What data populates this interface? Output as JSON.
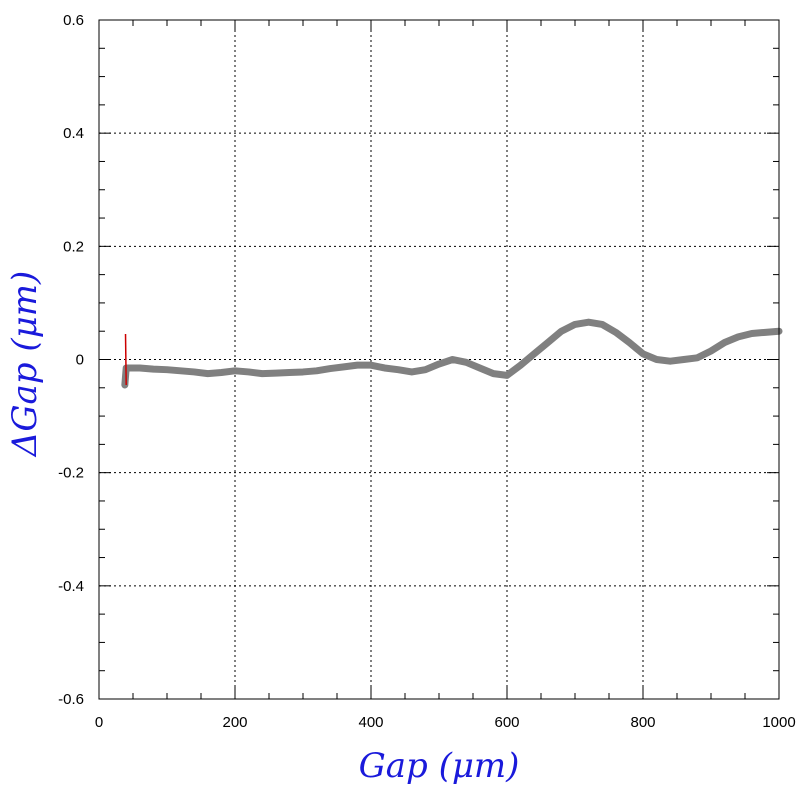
{
  "chart_data": {
    "type": "line",
    "xlabel": "Gap  (μm)",
    "ylabel": "ΔGap  (μm)",
    "xlim": [
      0,
      1000
    ],
    "ylim": [
      -0.6,
      0.6
    ],
    "x_ticks": [
      "0",
      "200",
      "400",
      "600",
      "800",
      "1000"
    ],
    "y_ticks": [
      "-0.6",
      "-0.4",
      "-0.2",
      "0",
      "0.2",
      "0.4",
      "0.6"
    ],
    "grid": true,
    "colors": {
      "main_line": "#808080",
      "spike": "#cc0000",
      "axis_title": "#1a1adb"
    },
    "series": [
      {
        "x": [
          38,
          40,
          45,
          60,
          80,
          100,
          120,
          140,
          160,
          180,
          200,
          220,
          240,
          260,
          280,
          300,
          320,
          340,
          360,
          380,
          400,
          420,
          440,
          460,
          480,
          500,
          520,
          540,
          560,
          580,
          600,
          620,
          640,
          660,
          680,
          700,
          720,
          740,
          760,
          780,
          800,
          820,
          840,
          860,
          880,
          900,
          920,
          940,
          960,
          980,
          1000
        ],
        "y": [
          -0.045,
          -0.015,
          -0.015,
          -0.015,
          -0.017,
          -0.018,
          -0.02,
          -0.022,
          -0.025,
          -0.023,
          -0.02,
          -0.022,
          -0.025,
          -0.024,
          -0.023,
          -0.022,
          -0.02,
          -0.016,
          -0.013,
          -0.01,
          -0.01,
          -0.015,
          -0.018,
          -0.022,
          -0.018,
          -0.008,
          0.0,
          -0.005,
          -0.015,
          -0.025,
          -0.028,
          -0.01,
          0.01,
          0.03,
          0.05,
          0.062,
          0.066,
          0.062,
          0.048,
          0.03,
          0.01,
          0.0,
          -0.003,
          0.0,
          0.003,
          0.015,
          0.03,
          0.04,
          0.046,
          0.048,
          0.05
        ]
      },
      {
        "x": [
          39,
          39.5,
          40
        ],
        "y": [
          0.045,
          0.0,
          -0.045
        ]
      }
    ]
  }
}
